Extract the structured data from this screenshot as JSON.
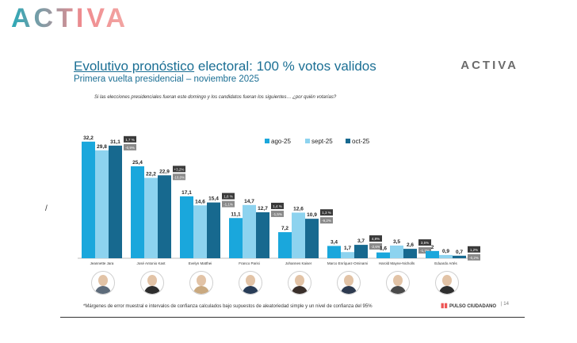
{
  "brand": "ACTIVA",
  "brand_small": "ACTIVA",
  "title_part1": "Evolutivo   pronóstico",
  "title_part2": " electoral: 100 % votos validos",
  "subtitle": "Primera  vuelta  presidencial  –  noviembre  2025",
  "question": "Si las elecciones presidenciales fueran este domingo y los candidatos fueran los siguientes… ¿por quién votarías?",
  "slash": "/",
  "footnote": "*Márgenes de error muestral e intervalos de confianza calculados bajo supuestos de aleatoriedad simple y un nivel de confianza del 95%",
  "brand2": "PULSO CIUDADANO",
  "page_num": "| 14",
  "colors": {
    "ago": "#1aa7dc",
    "sept": "#8dd3ef",
    "oct": "#17698f",
    "callout_dark": "#3a3a3a",
    "callout_grey": "#8a8a8a"
  },
  "chart_data": {
    "type": "bar",
    "categories": [
      "Jeannette Jara",
      "José Antonio Kast",
      "Evelyn Matthei",
      "Franco Parisi",
      "Johannes Kaiser",
      "Marco Enríquez-Ominami",
      "Harold Mayne-Nicholls",
      "Eduardo Artés"
    ],
    "series": [
      {
        "name": "ago-25",
        "values": [
          32.2,
          25.4,
          17.1,
          11.1,
          7.2,
          3.4,
          1.6,
          2.0
        ],
        "labels": [
          "32,2",
          "25,4",
          "17,1",
          "11,1",
          "7,2",
          "3,4",
          "1,6",
          "2"
        ]
      },
      {
        "name": "sept-25",
        "values": [
          29.8,
          22.2,
          14.6,
          14.7,
          12.6,
          1.7,
          3.5,
          0.9
        ],
        "labels": [
          "29,8",
          "22,2",
          "14,6",
          "14,7",
          "12,6",
          "1,7",
          "3,5",
          "0,9"
        ]
      },
      {
        "name": "oct-25",
        "values": [
          31.1,
          22.9,
          15.4,
          12.7,
          10.9,
          3.7,
          2.6,
          0.7
        ],
        "labels": [
          "31,1",
          "22,9",
          "15,4",
          "12,7",
          "10,9",
          "3,7",
          "2,6",
          "0,7"
        ]
      }
    ],
    "callouts": [
      {
        "top": "1,7 %",
        "bottom": "-0,9%"
      },
      {
        "top": "+3,2%",
        "bottom": "-10,0%"
      },
      {
        "top": "1,6 %",
        "bottom": "-1,1%"
      },
      {
        "top": "1,4 %",
        "bottom": "-1,5%"
      },
      {
        "top": "1,3 %",
        "bottom": "-9,2%"
      },
      {
        "top": "4,8%",
        "bottom": "-2,6%"
      },
      {
        "top": "3,5%",
        "bottom": "-1,7%"
      },
      {
        "top": "1,2%",
        "bottom": "-0,2%"
      }
    ],
    "ylim": [
      0,
      35
    ],
    "legend_position": "top-right"
  }
}
